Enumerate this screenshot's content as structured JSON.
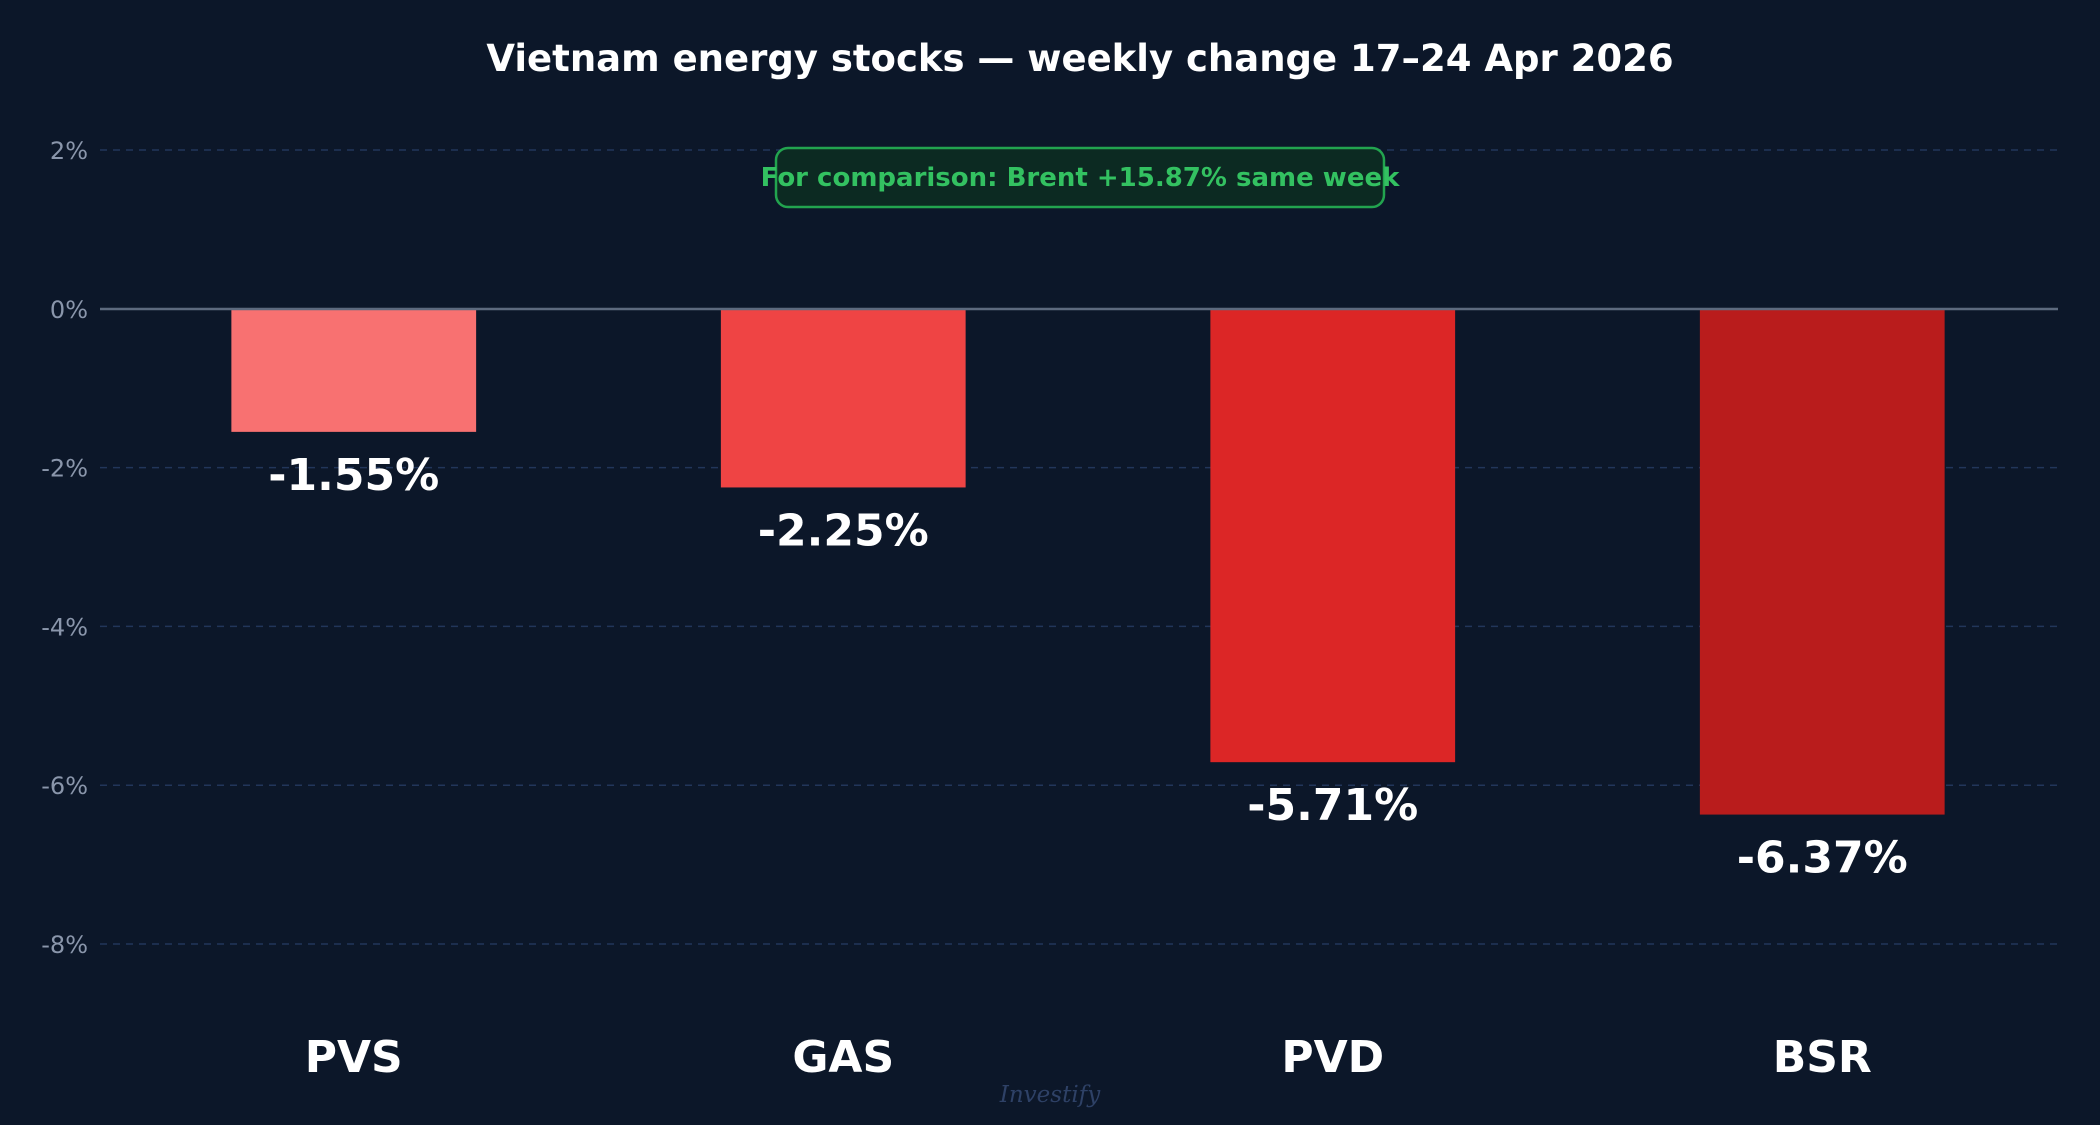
{
  "chart_data": {
    "type": "bar",
    "title": "Vietnam energy stocks — weekly change 17–24 Apr 2026",
    "categories": [
      "PVS",
      "GAS",
      "PVD",
      "BSR"
    ],
    "values": [
      -1.55,
      -2.25,
      -5.71,
      -6.37
    ],
    "value_labels": [
      "-1.55%",
      "-2.25%",
      "-5.71%",
      "-6.37%"
    ],
    "colors": [
      "#f87171",
      "#ef4444",
      "#dc2626",
      "#b91c1c"
    ],
    "ylim": [
      -8,
      2
    ],
    "yticks": [
      2,
      0,
      -2,
      -4,
      -6,
      -8
    ],
    "ytick_labels": [
      "2%",
      "0%",
      "-2%",
      "-4%",
      "-6%",
      "-8%"
    ],
    "xlabel": "",
    "ylabel": "",
    "grid": true,
    "annotation": "For comparison: Brent +15.87% same week",
    "annotation_color": "#33c161",
    "watermark": "Investify"
  }
}
